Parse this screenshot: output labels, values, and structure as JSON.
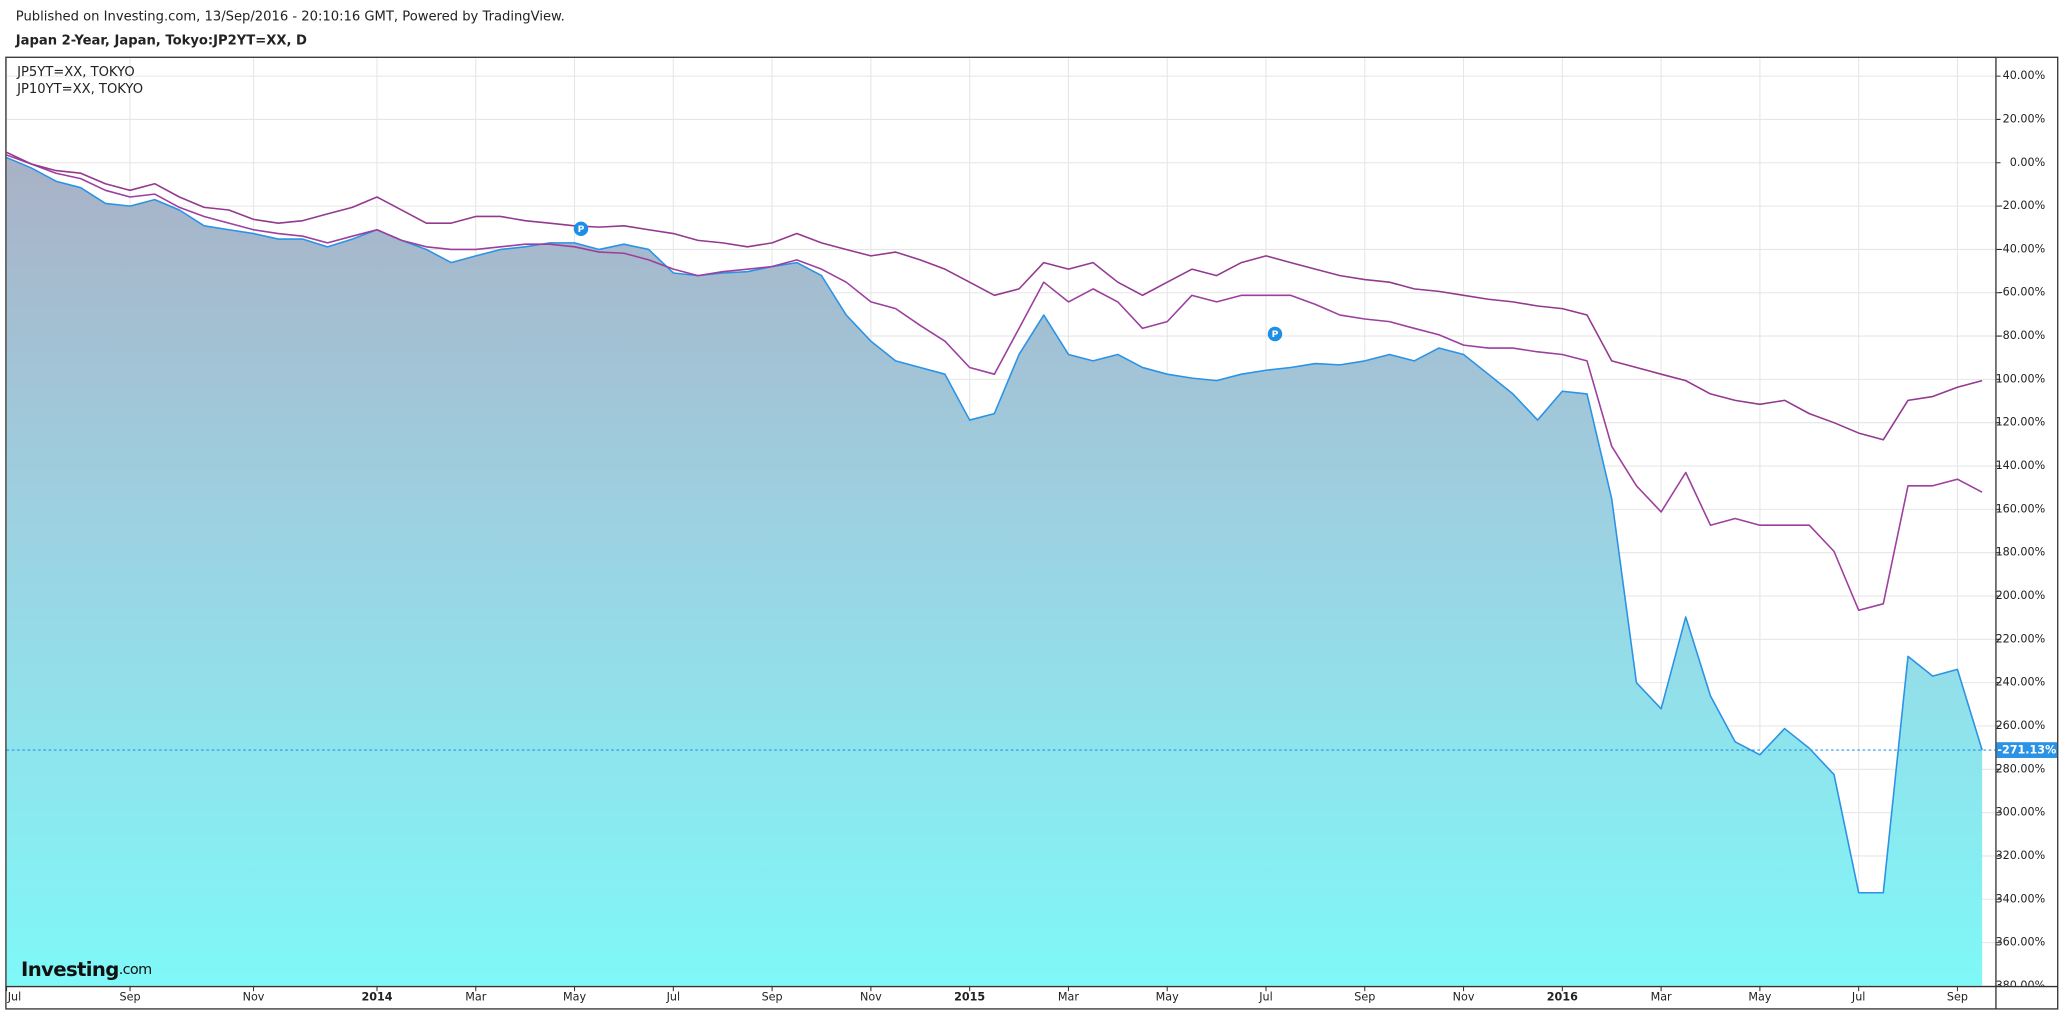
{
  "header": "Published on Investing.com, 13/Sep/2016 - 20:10:16 GMT, Powered by TradingView.",
  "logo": {
    "brand": "Investing",
    "suffix": ".com"
  },
  "events": [
    "P",
    "P"
  ],
  "chart_data": {
    "type": "line",
    "title": "Japan 2-Year, Japan, Tokyo:JP2YT=XX, D",
    "categories": [
      "Jul",
      null,
      null,
      null,
      null,
      "Sep",
      null,
      null,
      null,
      null,
      "Nov",
      null,
      null,
      null,
      null,
      "2014",
      null,
      null,
      null,
      "Mar",
      null,
      null,
      null,
      "May",
      null,
      null,
      null,
      "Jul",
      null,
      null,
      null,
      "Sep",
      null,
      null,
      null,
      "Nov",
      null,
      null,
      null,
      "2015",
      null,
      null,
      null,
      "Mar",
      null,
      null,
      null,
      "May",
      null,
      null,
      null,
      "Jul",
      null,
      null,
      null,
      "Sep",
      null,
      null,
      null,
      "Nov",
      null,
      null,
      null,
      "2016",
      null,
      null,
      null,
      "Mar",
      null,
      null,
      null,
      "May",
      null,
      null,
      null,
      "Jul",
      null,
      null,
      null,
      "Sep",
      null
    ],
    "series": [
      {
        "color": "#2a93e6",
        "area": true,
        "values": [
          2.4,
          -2.4,
          -8.5,
          -11.5,
          -18.8,
          -20,
          -17,
          -21.8,
          -29.1,
          -30.9,
          -32.7,
          -35.2,
          -35.2,
          -38.8,
          -35.2,
          -30.9,
          -35.8,
          -40,
          -46.1,
          -43,
          -40,
          -38.8,
          -37,
          -37,
          -40,
          -37.6,
          -40,
          -50.9,
          -52.1,
          -50.9,
          -50.3,
          -47.9,
          -46.1,
          -52.1,
          -70.3,
          -82.4,
          -91.5,
          -94.5,
          -97.6,
          -118.8,
          -115.8,
          -88.5,
          -70.3,
          -88.5,
          -91.5,
          -88.5,
          -94.5,
          -97.6,
          -99.4,
          -100.6,
          -97.6,
          -95.8,
          -94.5,
          -92.7,
          -93.3,
          -91.5,
          -88.5,
          -91.5,
          -85.5,
          -88.5,
          -97.6,
          -106.7,
          -118.8,
          -105.5,
          -106.7,
          -155.2,
          -240,
          -252.1,
          -209.7,
          -246.1,
          -267.3,
          -273.3,
          -261.2,
          -270.3,
          -282.4,
          -337,
          -337,
          -227.9,
          -237,
          -233.9,
          -271.13
        ],
        "value_labels": [
          null,
          null,
          null,
          null,
          null,
          null,
          null,
          null,
          null,
          null,
          null,
          null,
          null,
          null,
          null,
          null,
          null,
          null,
          null,
          null,
          null,
          null,
          null,
          null,
          null,
          null,
          null,
          null,
          null,
          null,
          null,
          null,
          null,
          null,
          null,
          null,
          null,
          null,
          null,
          null,
          null,
          null,
          null,
          null,
          null,
          null,
          null,
          null,
          null,
          null,
          null,
          null,
          null,
          null,
          null,
          null,
          null,
          null,
          null,
          null,
          null,
          null,
          null,
          null,
          null,
          null,
          null,
          null,
          null,
          null,
          null,
          null,
          null,
          null,
          null,
          null,
          null,
          null,
          null,
          null,
          "-271.13%"
        ]
      },
      {
        "name": "JP5YT=XX, TOKYO",
        "color": "#9c3f9e",
        "values": [
          3.6,
          -0.6,
          -4.8,
          -7.3,
          -12.7,
          -15.8,
          -14.5,
          -20.6,
          -24.8,
          -27.9,
          -30.9,
          -32.7,
          -33.9,
          -37,
          -33.9,
          -30.9,
          -35.8,
          -38.8,
          -40,
          -40,
          -38.8,
          -37.6,
          -37.6,
          -38.8,
          -41.2,
          -41.8,
          -44.8,
          -49.1,
          -52.1,
          -50.3,
          -49.1,
          -47.9,
          -44.8,
          -49.1,
          -55.1,
          -64.2,
          -67.3,
          -75.1,
          -82.4,
          -94.5,
          -97.6,
          -76.4,
          -55.1,
          -64.2,
          -58.2,
          -64.2,
          -76.4,
          -73.3,
          -61.2,
          -64.2,
          -61.2,
          -61.2,
          -61.2,
          -65.4,
          -70.3,
          -72.1,
          -73.3,
          -76.4,
          -79.4,
          -84.2,
          -85.5,
          -85.5,
          -87.3,
          -88.5,
          -91.5,
          -130.9,
          -149.1,
          -161.2,
          -143,
          -167.3,
          -164.2,
          -167.3,
          -167.3,
          -167.3,
          -179.4,
          -206.6,
          -203.6,
          -149.1,
          -149.1,
          -146.1,
          -152.1
        ]
      },
      {
        "name": "JP10YT=XX, TOKYO",
        "color": "#93398f",
        "values": [
          4.8,
          -0.6,
          -3.6,
          -4.8,
          -9.7,
          -12.7,
          -9.7,
          -15.8,
          -20.6,
          -21.8,
          -26.1,
          -27.9,
          -26.7,
          -23.6,
          -20.6,
          -15.8,
          -21.8,
          -27.9,
          -27.9,
          -24.8,
          -24.8,
          -26.7,
          -27.9,
          -29.1,
          -29.7,
          -29.1,
          -30.9,
          -32.7,
          -35.8,
          -37,
          -38.8,
          -37,
          -32.7,
          -37,
          -40,
          -43,
          -41.2,
          -44.8,
          -49.1,
          -55.1,
          -61.2,
          -58.2,
          -46.1,
          -49.1,
          -46.1,
          -55.1,
          -61.2,
          -55.1,
          -49.1,
          -52.1,
          -46.1,
          -43,
          -46.1,
          -49.1,
          -52.1,
          -53.9,
          -55.1,
          -58.2,
          -59.4,
          -61.2,
          -63,
          -64.2,
          -66.1,
          -67.3,
          -70.3,
          -91.5,
          -94.5,
          -97.6,
          -100.6,
          -106.7,
          -109.7,
          -111.5,
          -109.7,
          -115.8,
          -120,
          -124.8,
          -127.9,
          -109.7,
          -107.9,
          -103.6,
          -100.6
        ]
      }
    ],
    "ylim": [
      -380,
      49
    ],
    "yticks": [
      {
        "value": 40,
        "label": "40.00%"
      },
      {
        "value": 20,
        "label": "20.00%"
      },
      {
        "value": 0,
        "label": "0.00%"
      },
      {
        "value": -20,
        "label": "-20.00%"
      },
      {
        "value": -40,
        "label": "-40.00%"
      },
      {
        "value": -60,
        "label": "-60.00%"
      },
      {
        "value": -80,
        "label": "-80.00%"
      },
      {
        "value": -100,
        "label": "-100.00%"
      },
      {
        "value": -120,
        "label": "-120.00%"
      },
      {
        "value": -140,
        "label": "-140.00%"
      },
      {
        "value": -160,
        "label": "-160.00%"
      },
      {
        "value": -180,
        "label": "-180.00%"
      },
      {
        "value": -200,
        "label": "-200.00%"
      },
      {
        "value": -220,
        "label": "-220.00%"
      },
      {
        "value": -240,
        "label": "-240.00%"
      },
      {
        "value": -260,
        "label": "-260.00%"
      },
      {
        "value": -280,
        "label": "-280.00%"
      },
      {
        "value": -300,
        "label": "-300.00%"
      },
      {
        "value": -320,
        "label": "-320.00%"
      },
      {
        "value": -340,
        "label": "-340.00%"
      },
      {
        "value": -360,
        "label": "-360.00%"
      },
      {
        "value": -380,
        "label": "-380.00%"
      }
    ],
    "grid": true
  }
}
